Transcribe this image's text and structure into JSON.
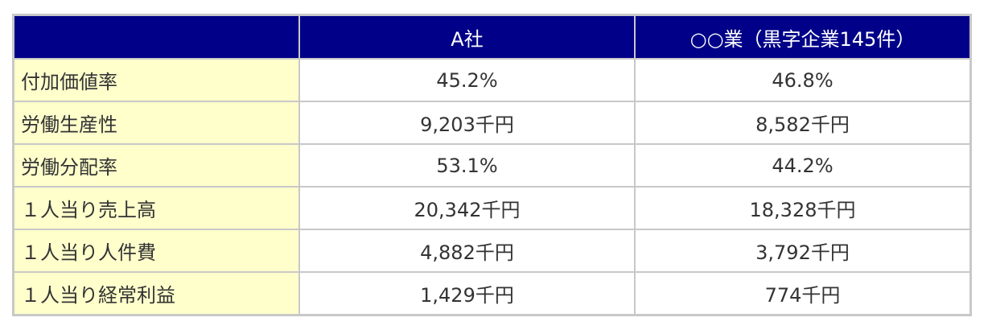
{
  "table": {
    "headers": [
      "",
      "A社",
      "○○業（黒字企業145件）"
    ],
    "rows": [
      {
        "label": "付加価値率",
        "a": "45.2%",
        "b": "46.8%"
      },
      {
        "label": "労働生産性",
        "a": "9,203千円",
        "b": "8,582千円"
      },
      {
        "label": "労働分配率",
        "a": "53.1%",
        "b": "44.2%"
      },
      {
        "label": "１人当り売上高",
        "a": "20,342千円",
        "b": "18,328千円"
      },
      {
        "label": "１人当り人件費",
        "a": "4,882千円",
        "b": "3,792千円"
      },
      {
        "label": "１人当り経常利益",
        "a": "1,429千円",
        "b": "774千円"
      }
    ]
  },
  "colors": {
    "header_bg": "#000088",
    "label_bg": "#ffffcc",
    "border": "#c8c8c8"
  }
}
